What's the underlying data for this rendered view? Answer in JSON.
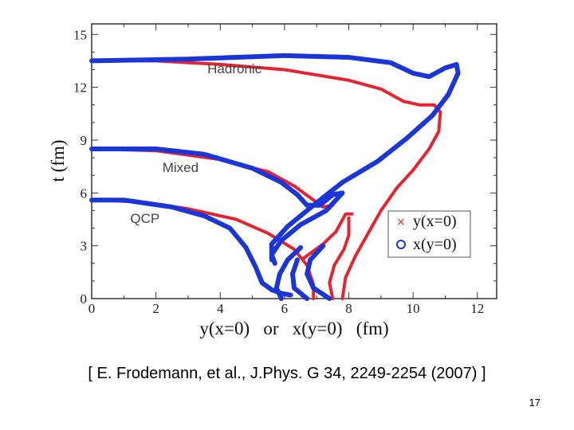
{
  "chart_data": {
    "type": "scatter",
    "title": "",
    "xlabel": "y(x=0)   or   x(y=0)   (fm)",
    "ylabel": "t (fm)",
    "xlim": [
      0,
      12.6
    ],
    "ylim": [
      0,
      15.6
    ],
    "xticks": [
      "0",
      "2",
      "4",
      "6",
      "8",
      "10",
      "12"
    ],
    "yticks": [
      "0",
      "3",
      "6",
      "9",
      "12",
      "15"
    ],
    "region_labels": [
      {
        "text": "Hadronic",
        "x": 3.6,
        "y": 12.8
      },
      {
        "text": "Mixed",
        "x": 2.2,
        "y": 7.2
      },
      {
        "text": "QCP",
        "x": 1.2,
        "y": 4.3
      }
    ],
    "legend": {
      "position": "lower-right",
      "entries": [
        "y(x=0)",
        "x(y=0)"
      ]
    },
    "series": [
      {
        "name": "y(x=0)",
        "marker": "x",
        "color": "#e8232d",
        "curves": [
          [
            [
              0,
              13.5
            ],
            [
              2,
              13.5
            ],
            [
              4,
              13.3
            ],
            [
              6,
              13.0
            ],
            [
              8,
              12.4
            ],
            [
              9,
              11.9
            ],
            [
              9.7,
              11.2
            ],
            [
              10.2,
              11.0
            ],
            [
              10.65,
              11.0
            ],
            [
              10.85,
              10.6
            ],
            [
              10.8,
              9.5
            ],
            [
              10.5,
              8.5
            ],
            [
              10.0,
              7.3
            ],
            [
              9.5,
              6.3
            ],
            [
              9.0,
              5.0
            ],
            [
              8.6,
              3.7
            ],
            [
              8.2,
              2.4
            ],
            [
              7.9,
              1.2
            ],
            [
              7.8,
              0
            ]
          ],
          [
            [
              0,
              8.5
            ],
            [
              2,
              8.4
            ],
            [
              4,
              7.9
            ],
            [
              5.5,
              7.2
            ],
            [
              6.3,
              6.4
            ],
            [
              6.9,
              5.6
            ],
            [
              7.2,
              5.2
            ],
            [
              7.5,
              5.3
            ]
          ],
          [
            [
              0,
              5.6
            ],
            [
              1.5,
              5.5
            ],
            [
              3,
              5.1
            ],
            [
              4.5,
              4.5
            ],
            [
              5.5,
              3.7
            ],
            [
              6.3,
              2.8
            ],
            [
              6.7,
              1.9
            ],
            [
              6.9,
              0.8
            ],
            [
              6.9,
              0
            ]
          ],
          [
            [
              6.6,
              2.3
            ],
            [
              7.2,
              3.1
            ],
            [
              7.6,
              3.8
            ],
            [
              7.9,
              4.8
            ],
            [
              8.1,
              4.8
            ]
          ],
          [
            [
              7.5,
              0
            ],
            [
              7.4,
              0.9
            ],
            [
              7.55,
              1.9
            ],
            [
              7.85,
              2.8
            ],
            [
              8.0,
              3.6
            ],
            [
              8.0,
              4.6
            ]
          ]
        ]
      },
      {
        "name": "x(y=0)",
        "marker": "o",
        "color": "#1a35d8",
        "curves": [
          [
            [
              0,
              13.5
            ],
            [
              3,
              13.6
            ],
            [
              6,
              13.8
            ],
            [
              8,
              13.7
            ],
            [
              9.3,
              13.4
            ],
            [
              10,
              12.8
            ],
            [
              10.5,
              12.6
            ],
            [
              11,
              13.1
            ],
            [
              11.35,
              13.3
            ],
            [
              11.4,
              12.8
            ],
            [
              11.1,
              11.6
            ],
            [
              10.6,
              10.4
            ],
            [
              9.8,
              9.1
            ],
            [
              8.9,
              7.8
            ],
            [
              7.8,
              6.6
            ],
            [
              6.9,
              5.3
            ],
            [
              6.1,
              4.1
            ],
            [
              5.6,
              3.1
            ],
            [
              5.6,
              2.2
            ]
          ],
          [
            [
              0,
              8.5
            ],
            [
              2,
              8.5
            ],
            [
              3.5,
              8.2
            ],
            [
              5,
              7.4
            ],
            [
              5.9,
              6.6
            ],
            [
              6.4,
              5.9
            ],
            [
              6.7,
              5.3
            ],
            [
              7.1,
              5.3
            ],
            [
              7.5,
              5.9
            ],
            [
              7.8,
              6.0
            ],
            [
              7.3,
              5.0
            ],
            [
              6.5,
              4.2
            ],
            [
              5.9,
              3.3
            ],
            [
              5.6,
              2.5
            ],
            [
              5.7,
              2.0
            ]
          ],
          [
            [
              0,
              5.6
            ],
            [
              1,
              5.6
            ],
            [
              2.5,
              5.2
            ],
            [
              3.5,
              4.7
            ],
            [
              4.3,
              4.0
            ],
            [
              4.8,
              2.9
            ],
            [
              5.1,
              1.8
            ],
            [
              5.3,
              0.9
            ],
            [
              5.6,
              0.5
            ],
            [
              5.9,
              0.3
            ],
            [
              6.2,
              0.2
            ]
          ],
          [
            [
              5.9,
              0
            ],
            [
              5.75,
              0.6
            ],
            [
              5.85,
              1.4
            ],
            [
              6.1,
              2.2
            ],
            [
              6.5,
              2.9
            ]
          ],
          [
            [
              6.7,
              0
            ],
            [
              6.3,
              0.6
            ],
            [
              6.25,
              1.4
            ],
            [
              6.4,
              2.2
            ]
          ],
          [
            [
              7.4,
              0
            ],
            [
              6.9,
              0.6
            ],
            [
              6.7,
              1.4
            ],
            [
              6.8,
              2.2
            ],
            [
              7.2,
              3.0
            ]
          ]
        ]
      }
    ]
  },
  "citation": "[ E. Frodemann, et al., J.Phys. G 34, 2249-2254 (2007) ]",
  "slide_number": "17"
}
